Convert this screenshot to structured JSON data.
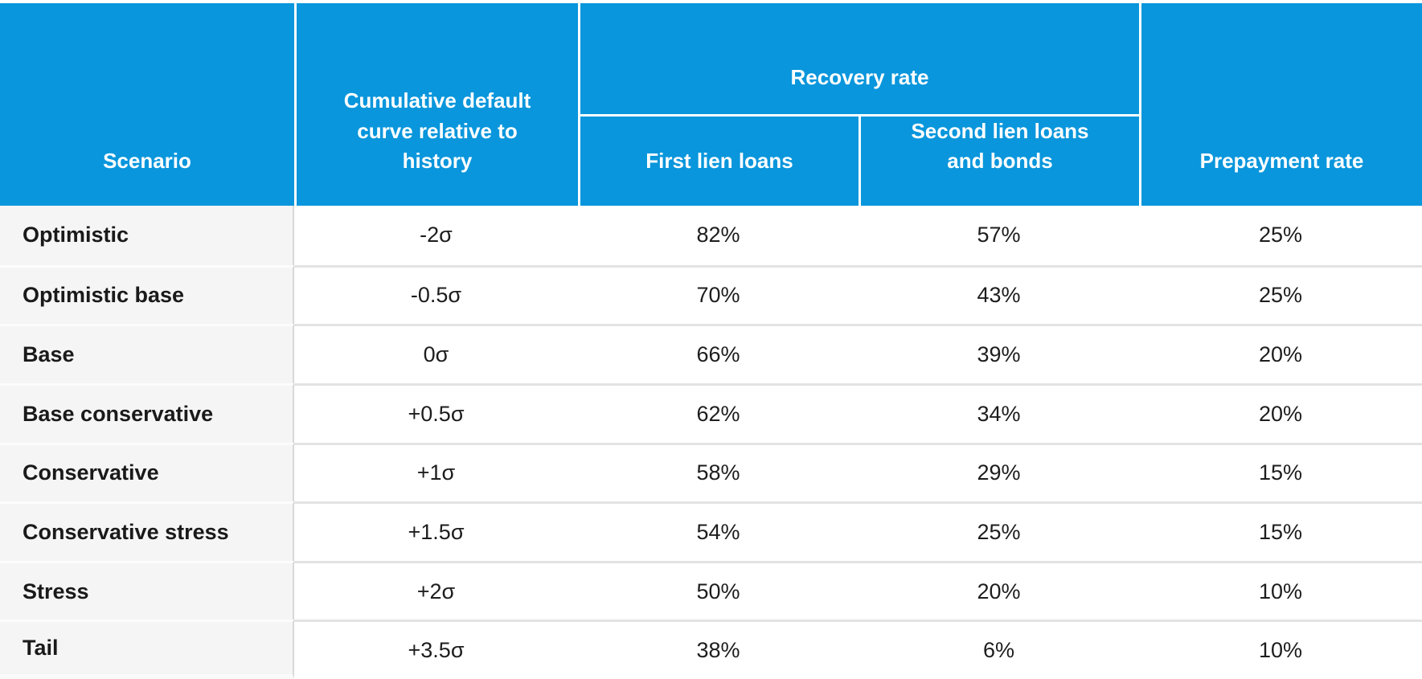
{
  "colors": {
    "header_bg": "#0996DC",
    "header_text": "#ffffff",
    "label_column_bg": "#f5f5f5",
    "body_bg": "#ffffff",
    "body_text": "#1d1d1d",
    "row_separator": "#e3e3e3",
    "label_column_divider": "#d8d8d8"
  },
  "header": {
    "scenario": "Scenario",
    "cumulative_default": "Cumulative default curve relative to history",
    "recovery_group": "Recovery rate",
    "first_lien": "First lien loans",
    "second_lien": "Second lien loans and bonds",
    "prepayment": "Prepayment rate"
  },
  "rows": [
    {
      "scenario": "Optimistic",
      "default_curve": "-2σ",
      "first_lien": "82%",
      "second_lien": "57%",
      "prepayment": "25%"
    },
    {
      "scenario": "Optimistic base",
      "default_curve": "-0.5σ",
      "first_lien": "70%",
      "second_lien": "43%",
      "prepayment": "25%"
    },
    {
      "scenario": "Base",
      "default_curve": "0σ",
      "first_lien": "66%",
      "second_lien": "39%",
      "prepayment": "20%"
    },
    {
      "scenario": "Base conservative",
      "default_curve": "+0.5σ",
      "first_lien": "62%",
      "second_lien": "34%",
      "prepayment": "20%"
    },
    {
      "scenario": "Conservative",
      "default_curve": "+1σ",
      "first_lien": "58%",
      "second_lien": "29%",
      "prepayment": "15%"
    },
    {
      "scenario": "Conservative stress",
      "default_curve": "+1.5σ",
      "first_lien": "54%",
      "second_lien": "25%",
      "prepayment": "15%"
    },
    {
      "scenario": "Stress",
      "default_curve": "+2σ",
      "first_lien": "50%",
      "second_lien": "20%",
      "prepayment": "10%"
    },
    {
      "scenario": "Tail",
      "default_curve": "+3.5σ",
      "first_lien": "38%",
      "second_lien": "6%",
      "prepayment": "10%"
    }
  ],
  "chart_data": {
    "type": "table",
    "title": "",
    "column_groups": [
      {
        "label": "Recovery rate",
        "spans": [
          "First lien loans",
          "Second lien loans and bonds"
        ]
      }
    ],
    "columns": [
      "Scenario",
      "Cumulative default curve relative to history",
      "First lien loans",
      "Second lien loans and bonds",
      "Prepayment rate"
    ],
    "rows": [
      [
        "Optimistic",
        "-2σ",
        "82%",
        "57%",
        "25%"
      ],
      [
        "Optimistic base",
        "-0.5σ",
        "70%",
        "43%",
        "25%"
      ],
      [
        "Base",
        "0σ",
        "66%",
        "39%",
        "20%"
      ],
      [
        "Base conservative",
        "+0.5σ",
        "62%",
        "34%",
        "20%"
      ],
      [
        "Conservative",
        "+1σ",
        "58%",
        "29%",
        "15%"
      ],
      [
        "Conservative stress",
        "+1.5σ",
        "54%",
        "25%",
        "15%"
      ],
      [
        "Stress",
        "+2σ",
        "50%",
        "20%",
        "10%"
      ],
      [
        "Tail",
        "+3.5σ",
        "38%",
        "6%",
        "10%"
      ]
    ]
  }
}
